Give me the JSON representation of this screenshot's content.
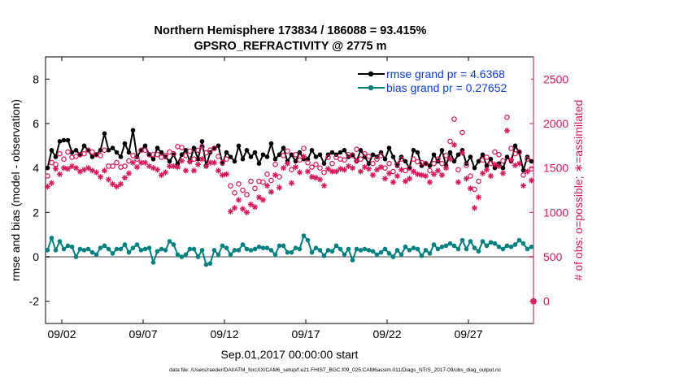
{
  "chart_data": {
    "type": "line",
    "title_line1": "Northern Hemisphere 173834 / 186088 = 93.415%",
    "title_line2": "GPSRO_REFRACTIVITY @ 2775 m",
    "xlabel": "Sep.01,2017 00:00:00 start",
    "ylabel_left": "rmse and bias (model - observation)",
    "ylabel_right": "# of obs: o=possible; ∗=assimilated",
    "xlim": [
      0,
      30
    ],
    "x_ticks": [
      1,
      6,
      11,
      16,
      21,
      26
    ],
    "x_tick_labels": [
      "09/02",
      "09/07",
      "09/12",
      "09/17",
      "09/22",
      "09/27"
    ],
    "ylim_left": [
      -3,
      9
    ],
    "y_ticks_left": [
      -2,
      0,
      2,
      4,
      6,
      8
    ],
    "y_tick_labels_left": [
      "-2",
      "0",
      "2",
      "4",
      "6",
      "8"
    ],
    "ylim_right": [
      -250,
      2750
    ],
    "y_ticks_right": [
      0,
      500,
      1000,
      1500,
      2000,
      2500
    ],
    "y_tick_labels_right": [
      "0",
      "500",
      "1000",
      "1500",
      "2000",
      "2500"
    ],
    "legend": [
      "rmse grand pr = 4.6368",
      "bias grand pr = 0.27652"
    ],
    "x": [
      0.125,
      0.375,
      0.625,
      0.875,
      1.125,
      1.375,
      1.625,
      1.875,
      2.125,
      2.375,
      2.625,
      2.875,
      3.125,
      3.375,
      3.625,
      3.875,
      4.125,
      4.375,
      4.625,
      4.875,
      5.125,
      5.375,
      5.625,
      5.875,
      6.125,
      6.375,
      6.625,
      6.875,
      7.125,
      7.375,
      7.625,
      7.875,
      8.125,
      8.375,
      8.625,
      8.875,
      9.125,
      9.375,
      9.625,
      9.875,
      10.125,
      10.375,
      10.625,
      10.875,
      11.125,
      11.375,
      11.625,
      11.875,
      12.125,
      12.375,
      12.625,
      12.875,
      13.125,
      13.375,
      13.625,
      13.875,
      14.125,
      14.375,
      14.625,
      14.875,
      15.125,
      15.375,
      15.625,
      15.875,
      16.125,
      16.375,
      16.625,
      16.875,
      17.125,
      17.375,
      17.625,
      17.875,
      18.125,
      18.375,
      18.625,
      18.875,
      19.125,
      19.375,
      19.625,
      19.875,
      20.125,
      20.375,
      20.625,
      20.875,
      21.125,
      21.375,
      21.625,
      21.875,
      22.125,
      22.375,
      22.625,
      22.875,
      23.125,
      23.375,
      23.625,
      23.875,
      24.125,
      24.375,
      24.625,
      24.875,
      25.125,
      25.375,
      25.625,
      25.875,
      26.125,
      26.375,
      26.625,
      26.875,
      27.125,
      27.375,
      27.625,
      27.875,
      28.125,
      28.375,
      28.625,
      28.875,
      29.125,
      29.375,
      29.625,
      29.875
    ],
    "series": [
      {
        "name": "rmse",
        "color": "#000000",
        "axis": "left",
        "values": [
          4.0,
          4.8,
          4.5,
          5.2,
          5.25,
          5.25,
          4.7,
          4.8,
          4.6,
          5.0,
          4.8,
          4.5,
          4.6,
          4.8,
          5.55,
          4.8,
          4.9,
          4.7,
          4.5,
          5.1,
          4.7,
          5.7,
          4.5,
          4.8,
          5.0,
          4.6,
          4.4,
          4.9,
          4.7,
          4.5,
          4.3,
          4.6,
          4.2,
          4.6,
          4.8,
          4.3,
          4.9,
          4.4,
          5.2,
          4.1,
          4.7,
          4.9,
          5.0,
          4.2,
          4.7,
          4.5,
          4.3,
          5.0,
          4.4,
          4.8,
          4.5,
          4.7,
          4.2,
          4.6,
          4.5,
          5.1,
          4.4,
          4.6,
          4.9,
          4.3,
          4.6,
          4.3,
          4.7,
          4.4,
          4.4,
          4.8,
          4.5,
          4.6,
          4.2,
          4.6,
          4.7,
          4.6,
          4.7,
          4.8,
          4.5,
          4.6,
          4.3,
          4.8,
          4.5,
          4.2,
          4.6,
          4.5,
          4.7,
          4.4,
          4.9,
          4.5,
          4.1,
          4.5,
          4.3,
          4.0,
          4.8,
          4.7,
          4.1,
          4.2,
          4.1,
          4.6,
          4.3,
          4.8,
          4.1,
          4.7,
          4.3,
          4.6,
          4.8,
          4.2,
          4.5,
          4.0,
          4.3,
          4.6,
          4.1,
          4.4,
          4.0,
          4.2,
          4.0,
          4.5,
          4.3,
          5.0,
          4.7,
          3.9,
          4.5,
          4.3
        ]
      },
      {
        "name": "bias",
        "color": "#008080",
        "axis": "left",
        "values": [
          0.3,
          0.85,
          0.3,
          0.7,
          0.35,
          0.5,
          0.45,
          0.0,
          0.35,
          0.3,
          0.35,
          0.2,
          0.1,
          0.4,
          0.5,
          0.35,
          0.15,
          0.35,
          0.35,
          0.55,
          0.2,
          0.4,
          0.55,
          0.3,
          0.35,
          0.4,
          -0.25,
          0.25,
          0.35,
          0.3,
          0.7,
          0.55,
          0.1,
          0.0,
          0.1,
          0.35,
          0.35,
          0.0,
          0.3,
          -0.35,
          -0.3,
          0.3,
          0.1,
          0.5,
          0.4,
          0.1,
          0.3,
          0.3,
          0.55,
          0.35,
          0.3,
          0.35,
          0.45,
          0.4,
          0.4,
          0.3,
          0.1,
          0.5,
          0.5,
          0.2,
          0.2,
          0.4,
          0.35,
          0.95,
          0.75,
          0.2,
          0.4,
          0.3,
          0.05,
          0.3,
          0.25,
          0.5,
          0.35,
          0.1,
          0.35,
          -0.15,
          0.35,
          0.3,
          0.35,
          0.3,
          0.25,
          0.1,
          0.2,
          0.35,
          0.15,
          0.0,
          0.3,
          0.1,
          0.45,
          0.3,
          0.4,
          0.35,
          0.05,
          0.3,
          0.15,
          0.55,
          0.35,
          0.45,
          0.5,
          0.6,
          0.5,
          0.35,
          0.75,
          0.35,
          0.7,
          0.4,
          0.25,
          0.7,
          0.5,
          0.65,
          0.6,
          0.45,
          0.35,
          0.5,
          0.45,
          0.55,
          0.75,
          0.6,
          0.35,
          0.45
        ]
      },
      {
        "name": "possible",
        "color": "#d6175a",
        "marker": "o",
        "axis": "right",
        "values": [
          1410,
          1560,
          1540,
          1660,
          1600,
          1680,
          1620,
          1630,
          1650,
          1660,
          1700,
          1680,
          1650,
          1640,
          1700,
          1520,
          1520,
          1560,
          1510,
          1520,
          1580,
          1640,
          1600,
          1700,
          1700,
          1650,
          1650,
          1650,
          1620,
          1640,
          1680,
          1660,
          1740,
          1730,
          1640,
          1690,
          1600,
          1700,
          1740,
          1670,
          1700,
          1720,
          1630,
          1560,
          1600,
          1300,
          1220,
          1320,
          1250,
          1200,
          1350,
          1270,
          1350,
          1340,
          1430,
          1360,
          1540,
          1400,
          1640,
          1690,
          1480,
          1650,
          1590,
          1720,
          1560,
          1510,
          1540,
          1500,
          1450,
          1620,
          1550,
          1620,
          1600,
          1590,
          1650,
          1640,
          1710,
          1600,
          1660,
          1630,
          1550,
          1600,
          1640,
          1500,
          1550,
          1460,
          1540,
          1600,
          1470,
          1500,
          1600,
          1570,
          1560,
          1550,
          1470,
          1550,
          1600,
          1550,
          1640,
          1800,
          2050,
          1480,
          1900,
          1530,
          1410,
          1260,
          1350,
          1590,
          1620,
          1550,
          1680,
          1650,
          1580,
          2070,
          1720,
          1660,
          1680,
          1420,
          1600,
          1490
        ]
      },
      {
        "name": "assimilated",
        "color": "#d6175a",
        "marker": "*",
        "axis": "right",
        "values": [
          1290,
          1330,
          1490,
          1430,
          1500,
          1490,
          1520,
          1500,
          1460,
          1480,
          1500,
          1470,
          1450,
          1400,
          1470,
          1370,
          1320,
          1290,
          1320,
          1390,
          1440,
          1560,
          1510,
          1560,
          1560,
          1520,
          1500,
          1480,
          1420,
          1450,
          1520,
          1520,
          1510,
          1580,
          1470,
          1570,
          1470,
          1540,
          1600,
          1520,
          1560,
          1560,
          1470,
          1420,
          1430,
          1010,
          1050,
          1140,
          1040,
          1000,
          1090,
          1060,
          1170,
          1140,
          1300,
          1230,
          1420,
          1280,
          1500,
          1550,
          1330,
          1510,
          1450,
          1630,
          1460,
          1400,
          1390,
          1370,
          1300,
          1490,
          1460,
          1460,
          1490,
          1480,
          1520,
          1500,
          1580,
          1460,
          1510,
          1490,
          1420,
          1480,
          1510,
          1380,
          1440,
          1340,
          1410,
          1480,
          1350,
          1380,
          1460,
          1430,
          1420,
          1410,
          1340,
          1430,
          1470,
          1420,
          1500,
          1600,
          1760,
          1340,
          1670,
          1380,
          1270,
          1050,
          1170,
          1440,
          1480,
          1410,
          1540,
          1520,
          1440,
          1920,
          1590,
          1530,
          1550,
          1300,
          1460,
          1360
        ]
      }
    ]
  },
  "footer": "data file: /Users/raeder/DAI/ATM_forcXX/CAM6_setup/f.e21.FHIST_BGC.f09_025.CAM6assim.011/Diags_NTrS_2017-09/obs_diag_output.nc"
}
